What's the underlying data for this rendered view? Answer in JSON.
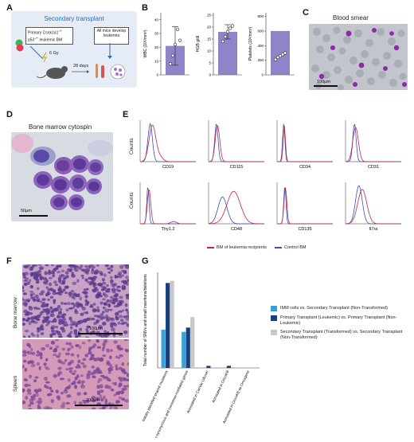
{
  "panels": {
    "A": {
      "label": "A",
      "title": "Secondary transplant",
      "donor_text_line1": "Primary Csnk1a1",
      "donor_text_sup1": "-/+",
      "donor_text_line2": "p53",
      "donor_text_sup2": "-/+",
      "donor_text_line3": " leukemic BM",
      "irradiation": "6 Gy",
      "outcome": "All mice develop leukemia",
      "days": "28 days"
    },
    "B": {
      "label": "B",
      "charts": [
        {
          "ylabel": "WBC (10³/mm³)",
          "yticks": [
            "0",
            "10",
            "20",
            "30",
            "40"
          ],
          "ylim": [
            0,
            45
          ],
          "bar": 21,
          "err": 14,
          "points": [
            8,
            14,
            22,
            33,
            25
          ]
        },
        {
          "ylabel": "HGB g/dl",
          "yticks": [
            "0",
            "5",
            "10",
            "15",
            "20",
            "25"
          ],
          "ylim": [
            0,
            26
          ],
          "bar": 18,
          "err": 3,
          "points": [
            14,
            16,
            18,
            19.5,
            20.5
          ]
        },
        {
          "ylabel": "Platelets (10³/mm³)",
          "yticks": [
            "0",
            "200",
            "400",
            "600",
            "800"
          ],
          "ylim": [
            0,
            850
          ],
          "bar": 600,
          "err": 0,
          "points": [
            210,
            240,
            260,
            280,
            300
          ]
        }
      ]
    },
    "C": {
      "label": "C",
      "title": "Blood smear",
      "scale": "100µm"
    },
    "D": {
      "label": "D",
      "title": "Bone marrow cytospin",
      "scale": "50µm"
    },
    "E": {
      "label": "E",
      "ylabel": "Counts",
      "markers_row1": [
        "CD19",
        "CD115",
        "CD34",
        "CD31"
      ],
      "markers_row2": [
        "Thy1.2",
        "CD48",
        "CD135",
        "Il7ra"
      ],
      "legend": [
        {
          "name": "BM of leukemia recipients",
          "color": "#c0264a"
        },
        {
          "name": "Control BM",
          "color": "#3b4fb0"
        }
      ]
    },
    "F": {
      "label": "F",
      "rows": [
        "Bone marrow",
        "Spleen"
      ],
      "scale_top": "100µm",
      "scale_bottom": "200µm"
    }
  },
  "chart_data": {
    "type": "bar",
    "title": "",
    "ylabel": "Total number of SNVs and small insertions/deletions",
    "ylim": [
      0,
      45
    ],
    "categories": [
      "Initially identified shared mutations",
      "Filtered for non-synonymous and nonsense-mediated genes",
      "Annotated in CanVar Liftover",
      "Annotated in OncoKB",
      "Annotated in OncoKB as Oncogene"
    ],
    "series": [
      {
        "name": "IMM cells vs. Secondary Transplant (Non-Transformed)",
        "color": "#3aa0d8",
        "values": [
          18,
          17,
          0,
          0,
          0
        ]
      },
      {
        "name": "Primary Transplant (Leukemic) vs. Primary Transplant (Non-Leukemic)",
        "color": "#1b3f7a",
        "values": [
          40,
          19,
          1,
          1,
          0
        ]
      },
      {
        "name": "Secondary Transplant (Transformed) vs. Secondary Transplant (Non-Transformed)",
        "color": "#c8c8c8",
        "values": [
          41,
          24,
          0,
          0,
          0
        ]
      }
    ],
    "label": "G"
  }
}
